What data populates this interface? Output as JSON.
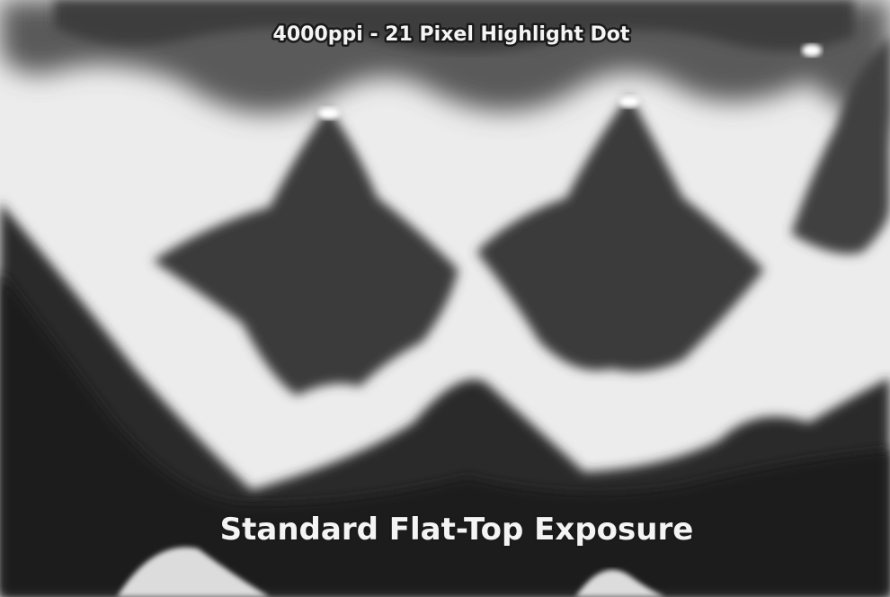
{
  "image": {
    "caption_top": "4000ppi - 21 Pixel Highlight Dot",
    "caption_bottom": "Standard Flat-Top Exposure"
  }
}
